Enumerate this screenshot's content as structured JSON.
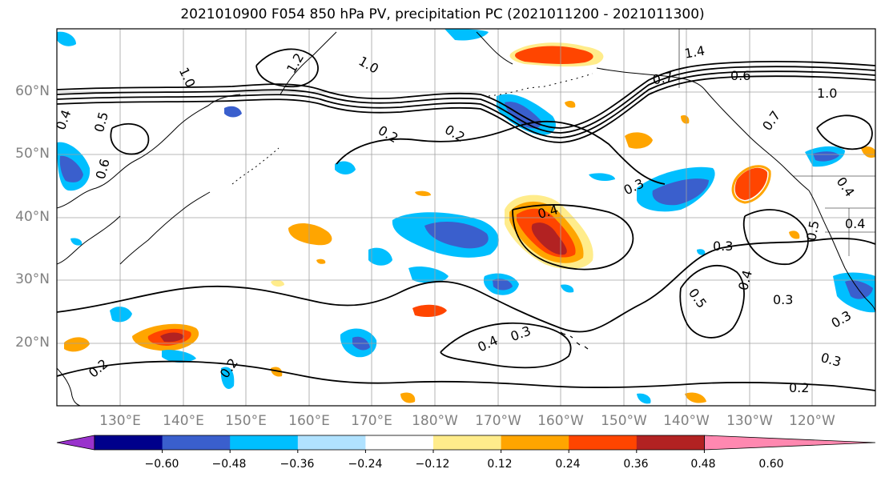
{
  "title": "2021010900 F054 850 hPa PV, precipitation PC (2021011200 - 2021011300)",
  "lat_labels": [
    "60°N",
    "50°N",
    "40°N",
    "30°N",
    "20°N"
  ],
  "lon_labels": [
    "130°E",
    "140°E",
    "150°E",
    "160°E",
    "170°E",
    "180°W",
    "170°W",
    "160°W",
    "150°W",
    "140°W",
    "130°W",
    "120°W"
  ],
  "contour_labels": [
    "0.4",
    "0.5",
    "0.6",
    "1.0",
    "1.2",
    "1.0",
    "0.2",
    "0.2",
    "1.4",
    "0.7",
    "0.6",
    "1.0",
    "0.7",
    "0.3",
    "0.4",
    "0.4",
    "0.3",
    "0.5",
    "0.4",
    "0.3",
    "0.5",
    "0.4",
    "0.3",
    "0.4",
    "0.3",
    "0.3",
    "0.2",
    "0.2",
    "0.2"
  ],
  "colorbar": {
    "colors": [
      "#9932cc",
      "#00008b",
      "#3a5fcd",
      "#00bfff",
      "#b0e2ff",
      "#ffffff",
      "#ffec8b",
      "#ffa500",
      "#ff4500",
      "#b22222",
      "#ff88b0"
    ],
    "tick_labels": [
      "−0.60",
      "−0.48",
      "−0.36",
      "−0.24",
      "−0.12",
      "0.12",
      "0.24",
      "0.36",
      "0.48",
      "0.60"
    ]
  }
}
